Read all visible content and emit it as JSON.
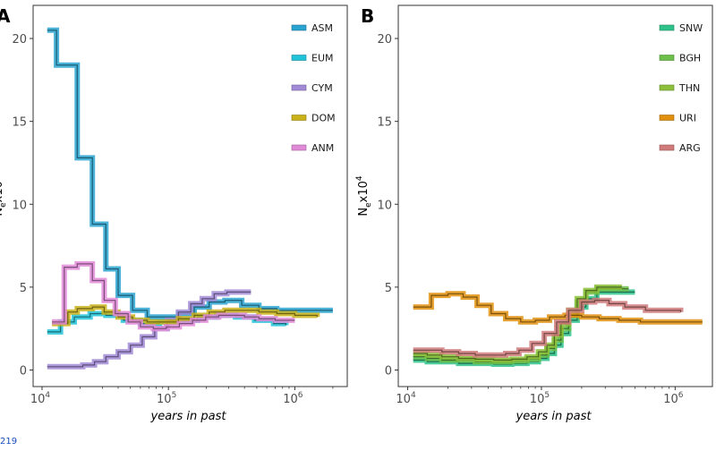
{
  "page_number": "219",
  "chart_data": [
    {
      "panel": "A",
      "type": "line",
      "xscale": "log10",
      "xlabel": "years in past",
      "ylabel": "N",
      "ylabel_sub": "e",
      "ylabel_rest": "x10",
      "ylabel_sup": "4",
      "xlim": [
        8500,
        2600000
      ],
      "ylim": [
        -1,
        22
      ],
      "x_ticks": [
        {
          "v": 10000,
          "b": "10",
          "e": "4"
        },
        {
          "v": 100000,
          "b": "10",
          "e": "5"
        },
        {
          "v": 1000000,
          "b": "10",
          "e": "6"
        }
      ],
      "y_ticks": [
        0,
        5,
        10,
        15,
        20
      ],
      "legend": [
        {
          "name": "ASM",
          "color": "#2aa3d0"
        },
        {
          "name": "EUM",
          "color": "#22c3d8"
        },
        {
          "name": "CYM",
          "color": "#a28ad6"
        },
        {
          "name": "DOM",
          "color": "#c9b21a"
        },
        {
          "name": "ANM",
          "color": "#e08ad8"
        }
      ],
      "series": [
        {
          "name": "ASM",
          "color": "#2aa3d0",
          "x": [
            11000,
            13000,
            19000,
            25000,
            32000,
            40000,
            52000,
            68000,
            90000,
            120000,
            160000,
            210000,
            280000,
            380000,
            520000,
            720000,
            2000000
          ],
          "y": [
            20.5,
            18.4,
            12.8,
            8.8,
            6.1,
            4.5,
            3.6,
            3.2,
            3.2,
            3.4,
            3.8,
            4.1,
            4.2,
            3.9,
            3.7,
            3.6,
            3.6
          ]
        },
        {
          "name": "EUM",
          "color": "#22c3d8",
          "x": [
            11000,
            14000,
            18000,
            24000,
            32000,
            44000,
            60000,
            85000,
            120000,
            170000,
            240000,
            340000,
            480000,
            680000,
            850000
          ],
          "y": [
            2.3,
            2.9,
            3.2,
            3.4,
            3.3,
            3.0,
            2.8,
            2.9,
            3.0,
            3.2,
            3.3,
            3.2,
            3.0,
            2.8,
            2.7
          ]
        },
        {
          "name": "CYM",
          "color": "#a28ad6",
          "x": [
            11000,
            17000,
            21000,
            26000,
            32000,
            40000,
            50000,
            62000,
            78000,
            98000,
            120000,
            150000,
            185000,
            230000,
            290000,
            450000
          ],
          "y": [
            0.2,
            0.2,
            0.3,
            0.5,
            0.8,
            1.1,
            1.5,
            2.0,
            2.5,
            3.0,
            3.5,
            4.0,
            4.3,
            4.6,
            4.7,
            4.7
          ]
        },
        {
          "name": "DOM",
          "color": "#c9b21a",
          "x": [
            12000,
            16000,
            19000,
            25000,
            31000,
            40000,
            52000,
            68000,
            90000,
            120000,
            160000,
            210000,
            280000,
            380000,
            520000,
            720000,
            1000000,
            1500000
          ],
          "y": [
            2.8,
            3.5,
            3.7,
            3.8,
            3.5,
            3.2,
            3.0,
            2.9,
            2.9,
            3.1,
            3.3,
            3.5,
            3.6,
            3.6,
            3.5,
            3.4,
            3.3,
            3.2
          ]
        },
        {
          "name": "ANM",
          "color": "#e08ad8",
          "x": [
            12000,
            15000,
            19000,
            25000,
            31000,
            38000,
            48000,
            60000,
            76000,
            96000,
            122000,
            155000,
            197000,
            250000,
            320000,
            400000,
            520000,
            700000,
            1000000
          ],
          "y": [
            2.9,
            6.2,
            6.4,
            5.4,
            4.2,
            3.4,
            2.9,
            2.6,
            2.5,
            2.6,
            2.8,
            3.0,
            3.2,
            3.3,
            3.3,
            3.2,
            3.1,
            3.0,
            3.0
          ]
        }
      ]
    },
    {
      "panel": "B",
      "type": "line",
      "xscale": "log10",
      "xlabel": "years in past",
      "ylabel": "N",
      "ylabel_sub": "e",
      "ylabel_rest": "x10",
      "ylabel_sup": "4",
      "xlim": [
        8500,
        1900000
      ],
      "ylim": [
        -1,
        22
      ],
      "x_ticks": [
        {
          "v": 10000,
          "b": "10",
          "e": "4"
        },
        {
          "v": 100000,
          "b": "10",
          "e": "5"
        },
        {
          "v": 1000000,
          "b": "10",
          "e": "6"
        }
      ],
      "y_ticks": [
        0,
        5,
        10,
        15,
        20
      ],
      "legend": [
        {
          "name": "SNW",
          "color": "#2ec28a"
        },
        {
          "name": "BGH",
          "color": "#6cc04a"
        },
        {
          "name": "THN",
          "color": "#8cbf3a"
        },
        {
          "name": "URI",
          "color": "#e0900e"
        },
        {
          "name": "ARG",
          "color": "#d07a7a"
        }
      ],
      "series": [
        {
          "name": "SNW",
          "color": "#2ec28a",
          "x": [
            11000,
            14000,
            18000,
            24000,
            32000,
            44000,
            60000,
            78000,
            95000,
            110000,
            125000,
            140000,
            160000,
            185000,
            215000,
            260000,
            500000
          ],
          "y": [
            0.6,
            0.5,
            0.5,
            0.4,
            0.4,
            0.35,
            0.4,
            0.5,
            0.7,
            1.0,
            1.5,
            2.2,
            3.0,
            3.8,
            4.3,
            4.7,
            4.7
          ]
        },
        {
          "name": "BGH",
          "color": "#6cc04a",
          "x": [
            11000,
            14000,
            18000,
            24000,
            32000,
            44000,
            60000,
            78000,
            95000,
            110000,
            125000,
            140000,
            160000,
            185000,
            215000,
            260000,
            450000
          ],
          "y": [
            0.8,
            0.7,
            0.6,
            0.6,
            0.5,
            0.5,
            0.55,
            0.65,
            0.9,
            1.3,
            1.8,
            2.5,
            3.3,
            4.1,
            4.7,
            4.9,
            4.9
          ]
        },
        {
          "name": "THN",
          "color": "#8cbf3a",
          "x": [
            11000,
            14000,
            18000,
            24000,
            32000,
            44000,
            60000,
            78000,
            95000,
            110000,
            125000,
            140000,
            160000,
            185000,
            215000,
            260000,
            400000
          ],
          "y": [
            1.0,
            0.9,
            0.8,
            0.7,
            0.65,
            0.6,
            0.65,
            0.8,
            1.1,
            1.5,
            2.1,
            2.8,
            3.6,
            4.3,
            4.8,
            5.0,
            5.0
          ]
        },
        {
          "name": "URI",
          "color": "#e0900e",
          "x": [
            11000,
            15000,
            20000,
            26000,
            33000,
            42000,
            54000,
            70000,
            90000,
            115000,
            150000,
            200000,
            270000,
            380000,
            550000,
            1600000
          ],
          "y": [
            3.8,
            4.5,
            4.6,
            4.4,
            3.9,
            3.4,
            3.1,
            2.9,
            3.0,
            3.2,
            3.3,
            3.2,
            3.1,
            3.0,
            2.9,
            2.9
          ]
        },
        {
          "name": "ARG",
          "color": "#d07a7a",
          "x": [
            11000,
            14000,
            18000,
            24000,
            32000,
            42000,
            54000,
            68000,
            85000,
            105000,
            130000,
            160000,
            200000,
            250000,
            320000,
            420000,
            600000,
            1100000
          ],
          "y": [
            1.2,
            1.2,
            1.1,
            1.0,
            0.9,
            0.9,
            1.0,
            1.2,
            1.6,
            2.2,
            2.9,
            3.6,
            4.1,
            4.2,
            4.0,
            3.8,
            3.6,
            3.5
          ]
        }
      ]
    }
  ]
}
